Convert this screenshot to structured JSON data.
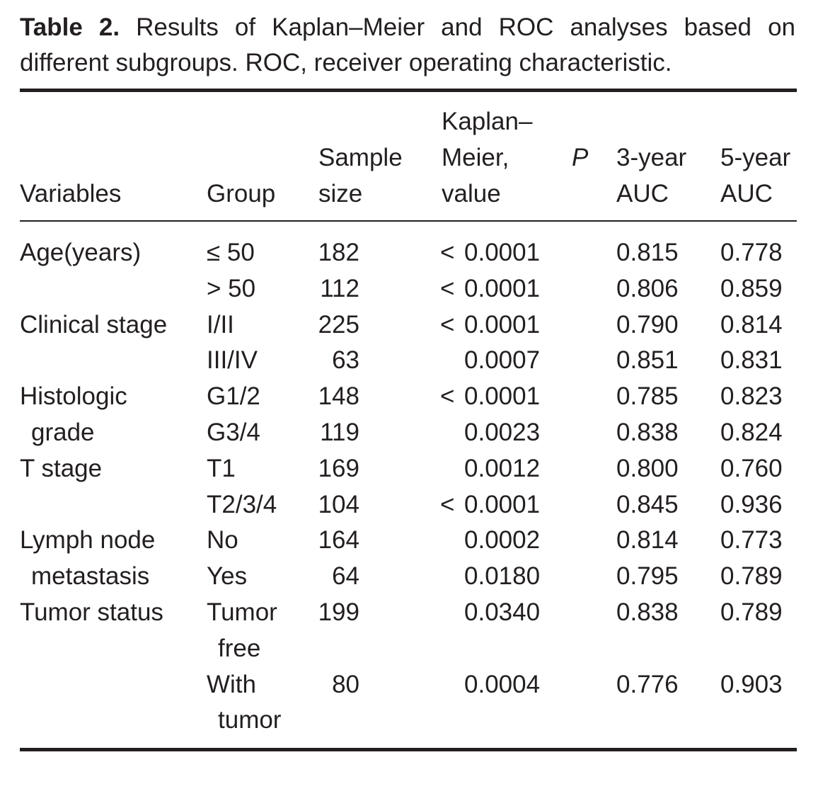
{
  "caption": {
    "label": "Table 2.",
    "text": " Results of Kaplan–Meier and ROC analyses based on different subgroups. ROC, receiver operating characteristic."
  },
  "header": {
    "variables": "Variables",
    "group": "Group",
    "sample_line1": "Sample",
    "sample_line2": "size",
    "km_line1": "Kaplan–",
    "km_line2": "Meier,",
    "km_p": "P",
    "km_line3": "value",
    "auc3_line1": "3-year",
    "auc3_line2": "AUC",
    "auc5_line1": "5-year",
    "auc5_line2": "AUC"
  },
  "rows": [
    {
      "variable": "Age(years)",
      "group": "≤ 50",
      "n": "182",
      "lt": "<",
      "p": "0.0001",
      "auc3": "0.815",
      "auc5": "0.778"
    },
    {
      "variable": "",
      "group": "> 50",
      "n": "112",
      "lt": "<",
      "p": "0.0001",
      "auc3": "0.806",
      "auc5": "0.859"
    },
    {
      "variable": "Clinical stage",
      "group": "I/II",
      "n": "225",
      "lt": "<",
      "p": "0.0001",
      "auc3": "0.790",
      "auc5": "0.814"
    },
    {
      "variable": "",
      "group": "III/IV",
      "n": "63",
      "lt": "",
      "p": "0.0007",
      "auc3": "0.851",
      "auc5": "0.831"
    },
    {
      "variable": "Histologic",
      "group": "G1/2",
      "n": "148",
      "lt": "<",
      "p": "0.0001",
      "auc3": "0.785",
      "auc5": "0.823"
    },
    {
      "variable": "grade",
      "group": "G3/4",
      "n": "119",
      "lt": "",
      "p": "0.0023",
      "auc3": "0.838",
      "auc5": "0.824"
    },
    {
      "variable": "T stage",
      "group": "T1",
      "n": "169",
      "lt": "",
      "p": "0.0012",
      "auc3": "0.800",
      "auc5": "0.760"
    },
    {
      "variable": "",
      "group": "T2/3/4",
      "n": "104",
      "lt": "<",
      "p": "0.0001",
      "auc3": "0.845",
      "auc5": "0.936"
    },
    {
      "variable": "Lymph node",
      "group": "No",
      "n": "164",
      "lt": "",
      "p": "0.0002",
      "auc3": "0.814",
      "auc5": "0.773"
    },
    {
      "variable": "metastasis",
      "group": "Yes",
      "n": "64",
      "lt": "",
      "p": "0.0180",
      "auc3": "0.795",
      "auc5": "0.789"
    },
    {
      "variable": "Tumor status",
      "group": "Tumor",
      "n": "199",
      "lt": "",
      "p": "0.0340",
      "auc3": "0.838",
      "auc5": "0.789"
    },
    {
      "variable": "",
      "group": "free",
      "n": "",
      "lt": "",
      "p": "",
      "auc3": "",
      "auc5": ""
    },
    {
      "variable": "",
      "group": "With",
      "n": "80",
      "lt": "",
      "p": "0.0004",
      "auc3": "0.776",
      "auc5": "0.903"
    },
    {
      "variable": "",
      "group": "tumor",
      "n": "",
      "lt": "",
      "p": "",
      "auc3": "",
      "auc5": ""
    }
  ]
}
